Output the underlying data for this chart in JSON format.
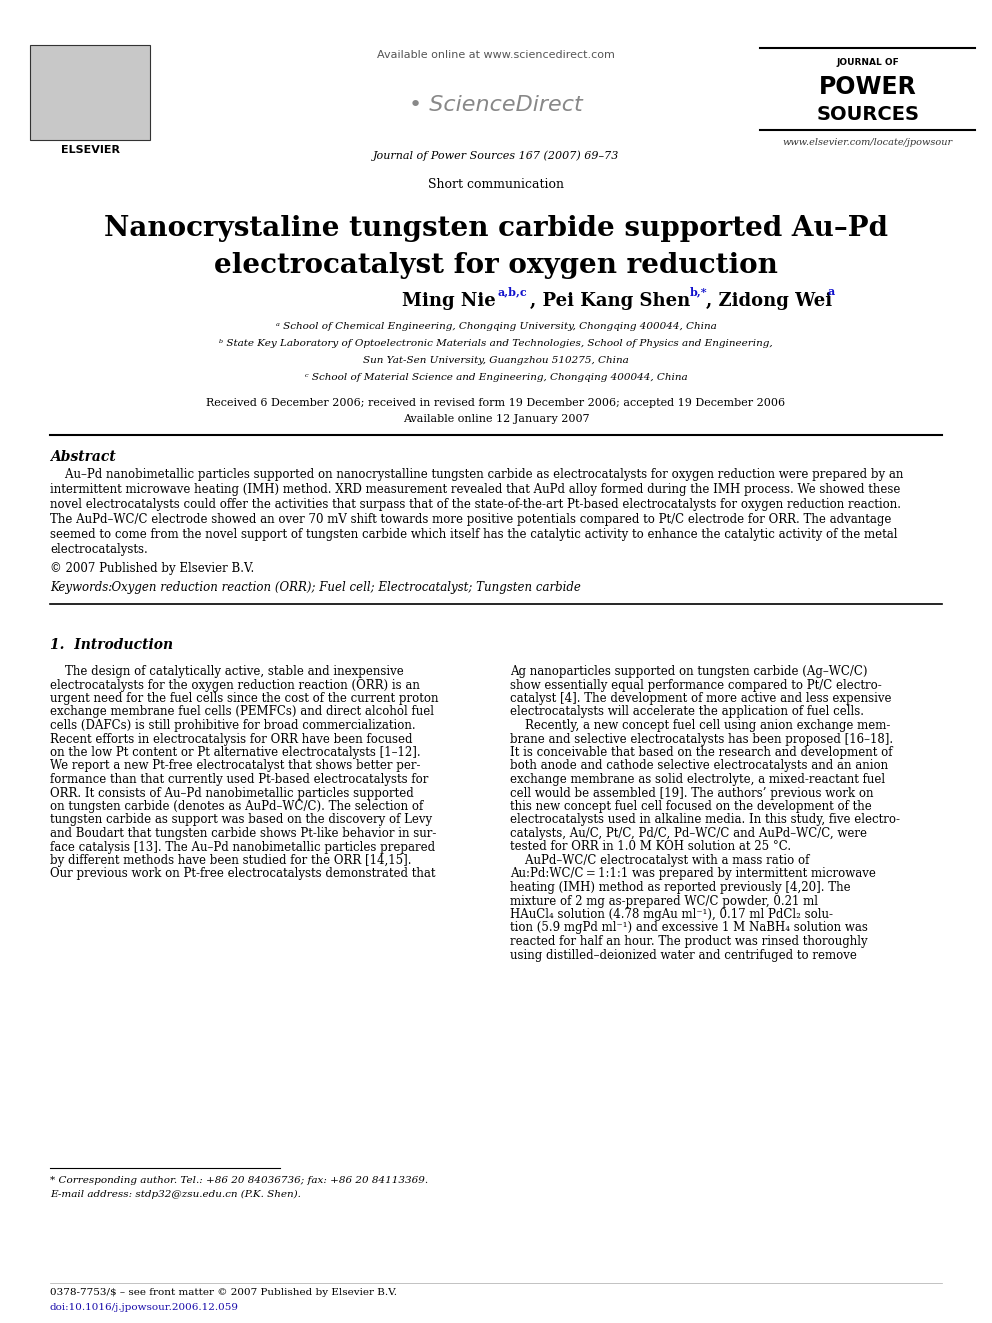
{
  "bg_color": "#ffffff",
  "header_url": "Available online at www.sciencedirect.com",
  "journal_name": "Journal of Power Sources 167 (2007) 69–73",
  "journal_website": "www.elsevier.com/locate/jpowsour",
  "article_type": "Short communication",
  "title_line1": "Nanocrystaline tungsten carbide supported Au–Pd",
  "title_line2": "electrocatalyst for oxygen reduction",
  "affil_a": "ᵃ School of Chemical Engineering, Chongqing University, Chongqing 400044, China",
  "affil_b": "ᵇ State Key Laboratory of Optoelectronic Materials and Technologies, School of Physics and Engineering,",
  "affil_b2": "Sun Yat-Sen University, Guangzhou 510275, China",
  "affil_c": "ᶜ School of Material Science and Engineering, Chongqing 400044, China",
  "received": "Received 6 December 2006; received in revised form 19 December 2006; accepted 19 December 2006",
  "available": "Available online 12 January 2007",
  "abstract_title": "Abstract",
  "abstract_text": "    Au–Pd nanobimetallic particles supported on nanocrystalline tungsten carbide as electrocatalysts for oxygen reduction were prepared by an intermittent microwave heating (IMH) method. XRD measurement revealed that AuPd alloy formed during the IMH process. We showed these novel electrocatalysts could offer the activities that surpass that of the state-of-the-art Pt-based electrocatalysts for oxygen reduction reaction. The AuPd–WC/C electrode showed an over 70 mV shift towards more positive potentials compared to Pt/C electrode for ORR. The advantage seemed to come from the novel support of tungsten carbide which itself has the catalytic activity to enhance the catalytic activity of the metal electrocatalysts.",
  "copyright": "© 2007 Published by Elsevier B.V.",
  "keywords_label": "Keywords:",
  "keywords_text": "  Oxygen reduction reaction (ORR); Fuel cell; Electrocatalyst; Tungsten carbide",
  "section1_title": "1.  Introduction",
  "intro_col1_lines": [
    "    The design of catalytically active, stable and inexpensive",
    "electrocatalysts for the oxygen reduction reaction (ORR) is an",
    "urgent need for the fuel cells since the cost of the current proton",
    "exchange membrane fuel cells (PEMFCs) and direct alcohol fuel",
    "cells (DAFCs) is still prohibitive for broad commercialization.",
    "Recent efforts in electrocatalysis for ORR have been focused",
    "on the low Pt content or Pt alternative electrocatalysts [1–12].",
    "We report a new Pt-free electrocatalyst that shows better per-",
    "formance than that currently used Pt-based electrocatalysts for",
    "ORR. It consists of Au–Pd nanobimetallic particles supported",
    "on tungsten carbide (denotes as AuPd–WC/C). The selection of",
    "tungsten carbide as support was based on the discovery of Levy",
    "and Boudart that tungsten carbide shows Pt-like behavior in sur-",
    "face catalysis [13]. The Au–Pd nanobimetallic particles prepared",
    "by different methods have been studied for the ORR [14,15].",
    "Our previous work on Pt-free electrocatalysts demonstrated that"
  ],
  "intro_col2_lines": [
    "Ag nanoparticles supported on tungsten carbide (Ag–WC/C)",
    "show essentially equal performance compared to Pt/C electro-",
    "catalyst [4]. The development of more active and less expensive",
    "electrocatalysts will accelerate the application of fuel cells.",
    "    Recently, a new concept fuel cell using anion exchange mem-",
    "brane and selective electrocatalysts has been proposed [16–18].",
    "It is conceivable that based on the research and development of",
    "both anode and cathode selective electrocatalysts and an anion",
    "exchange membrane as solid electrolyte, a mixed-reactant fuel",
    "cell would be assembled [19]. The authors’ previous work on",
    "this new concept fuel cell focused on the development of the",
    "electrocatalysts used in alkaline media. In this study, five electro-",
    "catalysts, Au/C, Pt/C, Pd/C, Pd–WC/C and AuPd–WC/C, were",
    "tested for ORR in 1.0 M KOH solution at 25 °C.",
    "    AuPd–WC/C electrocatalyst with a mass ratio of",
    "Au:Pd:WC/C = 1:1:1 was prepared by intermittent microwave",
    "heating (IMH) method as reported previously [4,20]. The",
    "mixture of 2 mg as-prepared WC/C powder, 0.21 ml",
    "HAuCl₄ solution (4.78 mgAu ml⁻¹), 0.17 ml PdCl₂ solu-",
    "tion (5.9 mgPd ml⁻¹) and excessive 1 M NaBH₄ solution was",
    "reacted for half an hour. The product was rinsed thoroughly",
    "using distilled–deionized water and centrifuged to remove"
  ],
  "footnote_star": "* Corresponding author. Tel.: +86 20 84036736; fax: +86 20 84113369.",
  "footnote_email": "E-mail address: stdp32@zsu.edu.cn (P.K. Shen).",
  "footer_issn": "0378-7753/$ – see front matter © 2007 Published by Elsevier B.V.",
  "footer_doi": "doi:10.1016/j.jpowsour.2006.12.059",
  "sciencedirect_color": "#888888",
  "link_color": "#1a0dab",
  "text_color": "#000000",
  "header_text_color": "#555555"
}
